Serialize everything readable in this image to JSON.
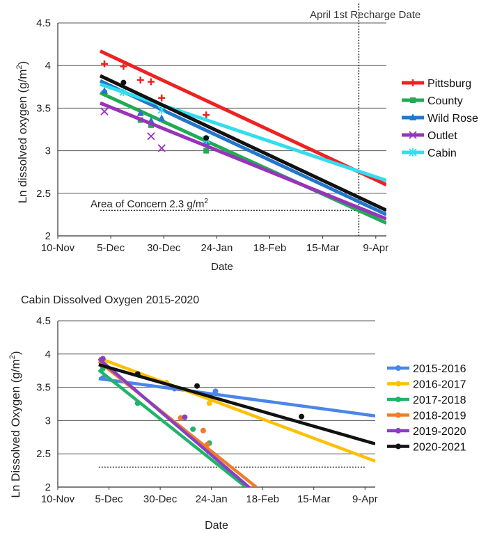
{
  "chart_data": [
    {
      "type": "line",
      "title": "",
      "xlabel": "Date",
      "ylabel": "Ln dissolved oxygen (g/m",
      "ylabel_sup": "2",
      "ylabel_tail": ")",
      "x_ticks": [
        "10-Nov",
        "5-Dec",
        "30-Dec",
        "24-Jan",
        "18-Feb",
        "15-Mar",
        "9-Apr"
      ],
      "x_tick_days": [
        0,
        25,
        50,
        75,
        100,
        125,
        150
      ],
      "xlim_days": [
        0,
        155
      ],
      "ylim": [
        2,
        4.5
      ],
      "y_ticks": [
        "2",
        "2.5",
        "3",
        "3.5",
        "4",
        "4.5"
      ],
      "y_tick_values": [
        2,
        2.5,
        3,
        3.5,
        4,
        4.5
      ],
      "grid": "horizontal",
      "legend_position": "right",
      "vline": {
        "label": "April 1st Recharge Date",
        "day": 142,
        "style": "dotted"
      },
      "hline": {
        "label": "Area of Concern 2.3 g/m",
        "label_sup": "2",
        "value": 2.3,
        "style": "dotted",
        "x_range_days": [
          20,
          142
        ]
      },
      "series": [
        {
          "name": "Pittsburg",
          "color": "#ee2222",
          "marker": "plus",
          "line": [
            [
              20,
              4.17
            ],
            [
              155,
              2.6
            ]
          ],
          "points": [
            [
              22,
              4.02
            ],
            [
              31,
              3.99
            ],
            [
              39,
              3.83
            ],
            [
              44,
              3.81
            ],
            [
              49,
              3.62
            ],
            [
              70,
              3.42
            ]
          ]
        },
        {
          "name": "County",
          "color": "#22aa55",
          "marker": "square",
          "line": [
            [
              20,
              3.68
            ],
            [
              155,
              2.15
            ]
          ],
          "points": [
            [
              22,
              3.68
            ],
            [
              39,
              3.36
            ],
            [
              44,
              3.3
            ],
            [
              70,
              3.0
            ]
          ]
        },
        {
          "name": "Wild Rose",
          "color": "#2277cc",
          "marker": "triangle",
          "line": [
            [
              20,
              3.82
            ],
            [
              155,
              2.25
            ]
          ],
          "points": [
            [
              22,
              3.7
            ],
            [
              39,
              3.44
            ],
            [
              44,
              3.35
            ],
            [
              49,
              3.38
            ],
            [
              70,
              3.1
            ]
          ]
        },
        {
          "name": "Outlet",
          "color": "#9933bb",
          "marker": "x",
          "line": [
            [
              20,
              3.56
            ],
            [
              155,
              2.2
            ]
          ],
          "points": [
            [
              22,
              3.46
            ],
            [
              44,
              3.17
            ],
            [
              49,
              3.03
            ]
          ]
        },
        {
          "name": "Cabin",
          "color": "#33ddee",
          "marker": "star",
          "line": [
            [
              20,
              3.78
            ],
            [
              155,
              2.65
            ]
          ],
          "points": [
            [
              31,
              3.69
            ],
            [
              49,
              3.48
            ],
            [
              70,
              3.13
            ]
          ]
        },
        {
          "name": "",
          "color": "#111111",
          "marker": "circle",
          "line": [
            [
              20,
              3.88
            ],
            [
              155,
              2.3
            ]
          ],
          "points": [
            [
              31,
              3.8
            ],
            [
              70,
              3.15
            ]
          ]
        }
      ]
    },
    {
      "type": "line",
      "title": "Cabin Dissolved Oxygen 2015-2020",
      "xlabel": "Date",
      "ylabel": "Ln Dissolved Oxygen (g/m",
      "ylabel_sup": "2",
      "ylabel_tail": ")",
      "x_ticks": [
        "10-Nov",
        "5-Dec",
        "30-Dec",
        "24-Jan",
        "18-Feb",
        "15-Mar",
        "9-Apr"
      ],
      "x_tick_days": [
        0,
        25,
        50,
        75,
        100,
        125,
        150
      ],
      "xlim_days": [
        0,
        155
      ],
      "ylim": [
        2,
        4.5
      ],
      "y_ticks": [
        "2",
        "2.5",
        "3",
        "3.5",
        "4",
        "4.5"
      ],
      "y_tick_values": [
        2,
        2.5,
        3,
        3.5,
        4,
        4.5
      ],
      "grid": "horizontal",
      "legend_position": "right",
      "hline": {
        "value": 2.3,
        "style": "dotted",
        "x_range_days": [
          20,
          150
        ]
      },
      "series": [
        {
          "name": "2015-2016",
          "color": "#4a86e8",
          "line": [
            [
              20,
              3.63
            ],
            [
              155,
              3.07
            ]
          ],
          "points": [
            [
              22,
              3.64
            ],
            [
              57,
              3.48
            ],
            [
              77,
              3.44
            ]
          ]
        },
        {
          "name": "2016-2017",
          "color": "#ffc000",
          "line": [
            [
              20,
              3.94
            ],
            [
              155,
              2.39
            ]
          ],
          "points": [
            [
              22,
              3.79
            ],
            [
              53,
              3.57
            ],
            [
              74,
              3.26
            ]
          ]
        },
        {
          "name": "2017-2018",
          "color": "#1fb569",
          "line": [
            [
              20,
              3.76
            ],
            [
              98,
              1.85
            ]
          ],
          "points": [
            [
              22,
              3.78
            ],
            [
              39,
              3.26
            ],
            [
              66,
              2.87
            ],
            [
              74,
              2.66
            ]
          ]
        },
        {
          "name": "2018-2019",
          "color": "#f07d2a",
          "line": [
            [
              20,
              3.89
            ],
            [
              103,
              1.85
            ]
          ],
          "points": [
            [
              60,
              3.04
            ],
            [
              71,
              2.85
            ],
            [
              73,
              2.64
            ]
          ]
        },
        {
          "name": "2019-2020",
          "color": "#8a3fc2",
          "line": [
            [
              20,
              3.93
            ],
            [
              99,
              1.85
            ]
          ],
          "points": [
            [
              22,
              3.93
            ],
            [
              62,
              3.05
            ]
          ]
        },
        {
          "name": "2020-2021",
          "color": "#111111",
          "line": [
            [
              20,
              3.84
            ],
            [
              155,
              2.65
            ]
          ],
          "points": [
            [
              39,
              3.7
            ],
            [
              68,
              3.52
            ],
            [
              119,
              3.06
            ]
          ]
        }
      ]
    }
  ]
}
